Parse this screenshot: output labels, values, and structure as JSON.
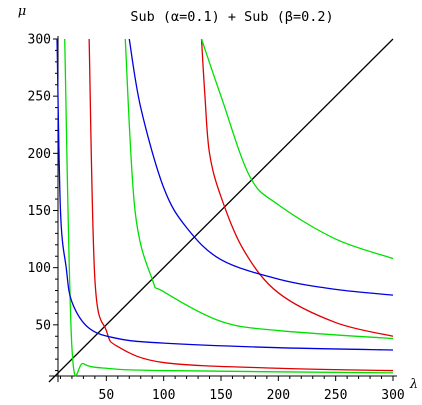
{
  "chart_data": {
    "type": "line",
    "title": "Sub (α=0.1) + Sub (β=0.2)",
    "xlabel": "λ",
    "ylabel": "μ",
    "xlim": [
      0,
      300
    ],
    "ylim": [
      0,
      300
    ],
    "xticks": [
      50,
      100,
      150,
      200,
      250,
      300
    ],
    "yticks": [
      50,
      100,
      150,
      200,
      250,
      300
    ],
    "series": [
      {
        "color": "#000000",
        "description": "diagonal",
        "points": [
          [
            0,
            0
          ],
          [
            300,
            300
          ]
        ]
      },
      {
        "color": "#00e000",
        "points": [
          [
            13.7,
            300
          ],
          [
            20,
            30
          ],
          [
            30,
            16
          ],
          [
            50,
            12
          ],
          [
            100,
            10
          ],
          [
            300,
            8
          ]
        ]
      },
      {
        "color": "#e00000",
        "points": [
          [
            35,
            300
          ],
          [
            40,
            90
          ],
          [
            50,
            45
          ],
          [
            60,
            31
          ],
          [
            100,
            17
          ],
          [
            200,
            12
          ],
          [
            300,
            10
          ]
        ]
      },
      {
        "color": "#00e000",
        "points": [
          [
            66.5,
            300
          ],
          [
            75,
            150
          ],
          [
            90,
            90
          ],
          [
            100,
            79
          ],
          [
            150,
            53
          ],
          [
            200,
            45
          ],
          [
            300,
            38
          ]
        ]
      },
      {
        "color": "#0000e0",
        "points": [
          [
            7,
            300
          ],
          [
            10,
            150
          ],
          [
            15,
            100
          ],
          [
            20,
            70
          ],
          [
            35,
            47
          ],
          [
            60,
            38
          ],
          [
            100,
            34
          ],
          [
            200,
            30
          ],
          [
            300,
            28
          ]
        ]
      },
      {
        "color": "#e00000",
        "points": [
          [
            133,
            300
          ],
          [
            136,
            250
          ],
          [
            140,
            200
          ],
          [
            150,
            162
          ],
          [
            170,
            115
          ],
          [
            200,
            78
          ],
          [
            250,
            52
          ],
          [
            300,
            40
          ]
        ]
      },
      {
        "color": "#0000e0",
        "points": [
          [
            70,
            300
          ],
          [
            80,
            240
          ],
          [
            100,
            170
          ],
          [
            120,
            135
          ],
          [
            150,
            107
          ],
          [
            200,
            90
          ],
          [
            250,
            81
          ],
          [
            300,
            76
          ]
        ]
      },
      {
        "color": "#00e000",
        "points": [
          [
            133,
            300
          ],
          [
            150,
            250
          ],
          [
            175,
            180
          ],
          [
            200,
            155
          ],
          [
            250,
            125
          ],
          [
            300,
            108
          ]
        ]
      }
    ]
  }
}
